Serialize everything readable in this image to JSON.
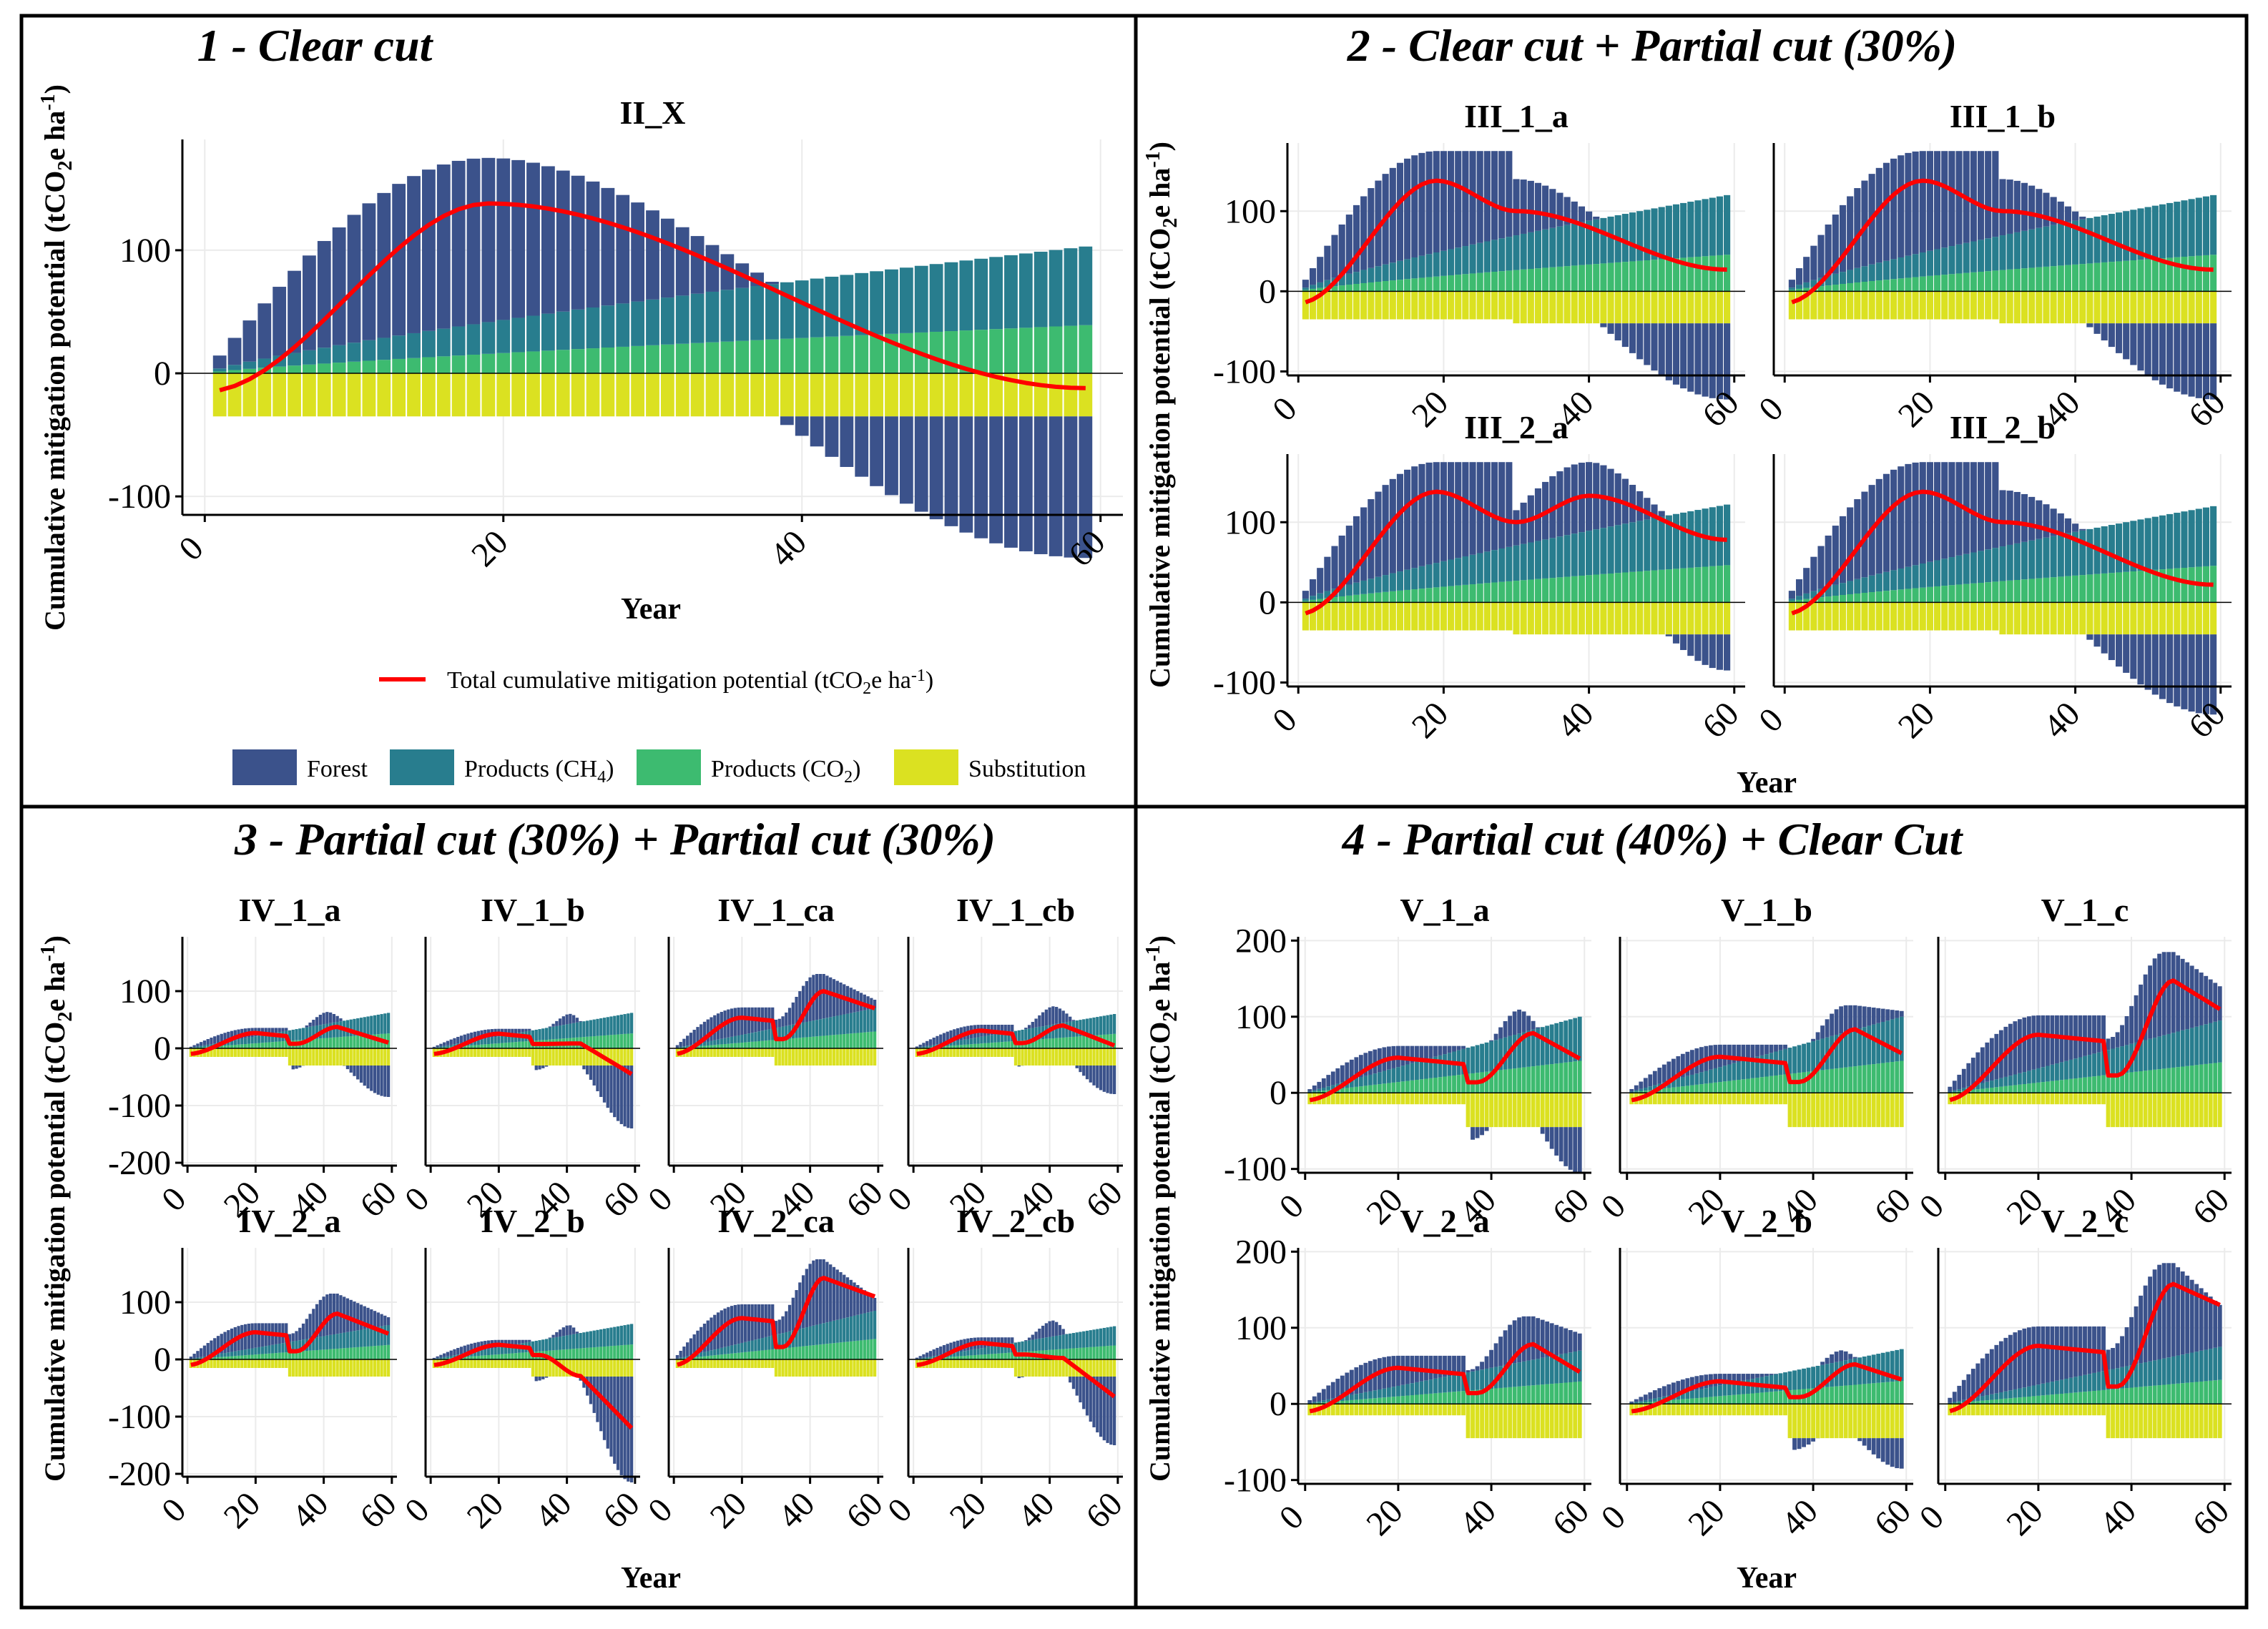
{
  "figure": {
    "y_label": "Cumulative mitigation potential (tCO",
    "y_label_sub": "2",
    "y_label_mid": "e ha",
    "y_label_sup": "-1",
    "y_label_end": ")",
    "x_label": "Year",
    "legend": {
      "line_label_pre": "Total cumulative mitigation potential (tCO",
      "line_label_sub": "2",
      "line_label_mid": "e ha",
      "line_label_sup": "-1",
      "line_label_end": ")",
      "forest": "Forest",
      "ch4_pre": "Products (CH",
      "ch4_sub": "4",
      "ch4_end": ")",
      "co2_pre": "Products (CO",
      "co2_sub": "2",
      "co2_end": ")",
      "substitution": "Substitution"
    },
    "colors": {
      "forest": "#3b528b",
      "ch4": "#287d8e",
      "co2": "#3dbb70",
      "substitution": "#dbe121",
      "total": "#ff0000",
      "frame": "#000000"
    }
  },
  "chart_data": [
    {
      "type": "bar",
      "panel": "1 - Clear cut",
      "x_axis": {
        "label": "Year",
        "ticks": [
          0,
          20,
          40,
          60
        ],
        "range": [
          0,
          60
        ]
      },
      "y_axis": {
        "ticks": [
          -100,
          0,
          100
        ],
        "range": [
          -115,
          190
        ]
      },
      "facets": [
        {
          "title": "II_X",
          "events": [
            {
              "year": 1,
              "kind": "clear",
              "peak": 175,
              "prodfrac": 0.6
            },
            {
              "year": 1,
              "kind": "sub",
              "value": -35
            }
          ],
          "forest_end": -115,
          "total_end": -12,
          "product_end": 103
        }
      ]
    },
    {
      "type": "bar",
      "panel": "2 - Clear cut + Partial cut (30%)",
      "x_axis": {
        "label": "Year",
        "ticks": [
          0,
          20,
          40,
          60
        ],
        "range": [
          0,
          60
        ]
      },
      "y_axis": {
        "ticks": [
          -100,
          0,
          100
        ],
        "range": [
          -105,
          185
        ]
      },
      "facets": [
        {
          "title": "III_1_a",
          "peak": 175,
          "cut2_year": 30,
          "cut2_drop": 35,
          "forest_end": -95,
          "total_end": 27,
          "product_end": 120,
          "sub1": -35,
          "sub2": -40
        },
        {
          "title": "III_1_b",
          "peak": 175,
          "cut2_year": 30,
          "cut2_drop": 35,
          "forest_end": -95,
          "total_end": 27,
          "product_end": 120,
          "sub1": -35,
          "sub2": -40
        },
        {
          "title": "III_2_a",
          "peak": 175,
          "cut2_year": 30,
          "cut2_drop": 40,
          "forest_end": -45,
          "total_end": 78,
          "product_end": 122,
          "sub1": -35,
          "sub2": -40
        },
        {
          "title": "III_2_b",
          "peak": 175,
          "cut2_year": 30,
          "cut2_drop": 35,
          "forest_end": -100,
          "total_end": 22,
          "product_end": 120,
          "sub1": -35,
          "sub2": -40
        }
      ]
    },
    {
      "type": "bar",
      "panel": "3 - Partial cut (30%) + Partial cut (30%)",
      "x_axis": {
        "label": "Year",
        "ticks": [
          0,
          20,
          40,
          60
        ],
        "range": [
          0,
          60
        ]
      },
      "y_axis": {
        "ticks": [
          -200,
          -100,
          0,
          100
        ],
        "range": [
          -205,
          195
        ]
      },
      "facets": [
        {
          "title": "IV_1_a",
          "top_max": 65,
          "total_end": 10,
          "forest_end": -55,
          "product_end": 62
        },
        {
          "title": "IV_1_b",
          "top_max": 62,
          "total_end": -45,
          "forest_end": -110,
          "product_end": 62
        },
        {
          "title": "IV_1_ca",
          "top_max": 130,
          "total_end": 70,
          "forest_end": 0,
          "product_end": 70
        },
        {
          "title": "IV_1_cb",
          "top_max": 75,
          "total_end": 5,
          "forest_end": -50,
          "product_end": 60
        },
        {
          "title": "IV_2_a",
          "top_max": 115,
          "total_end": 45,
          "forest_end": 0,
          "product_end": 60
        },
        {
          "title": "IV_2_b",
          "top_max": 62,
          "total_end": -120,
          "forest_end": -185,
          "product_end": 62
        },
        {
          "title": "IV_2_ca",
          "top_max": 175,
          "total_end": 110,
          "forest_end": 0,
          "product_end": 85
        },
        {
          "title": "IV_2_cb",
          "top_max": 70,
          "total_end": -65,
          "forest_end": -120,
          "product_end": 58
        }
      ]
    },
    {
      "type": "bar",
      "panel": "4 - Partial cut (40%) + Clear Cut",
      "x_axis": {
        "label": "Year",
        "ticks": [
          0,
          20,
          40,
          60
        ],
        "range": [
          0,
          60
        ]
      },
      "y_axis": {
        "ticks": [
          -100,
          0,
          100,
          200
        ],
        "range": [
          -105,
          205
        ]
      },
      "facets": [
        {
          "title": "V_1_a",
          "top_max": 112,
          "total_end": 45,
          "forest_end": -60,
          "product_end": 100
        },
        {
          "title": "V_1_b",
          "top_max": 115,
          "total_end": 52,
          "forest_end": 0,
          "product_end": 100
        },
        {
          "title": "V_1_c",
          "top_max": 185,
          "total_end": 110,
          "forest_end": 0,
          "product_end": 95
        },
        {
          "title": "V_2_a",
          "top_max": 115,
          "total_end": 42,
          "forest_end": 0,
          "product_end": 70
        },
        {
          "title": "V_2_b",
          "top_max": 72,
          "total_end": 32,
          "forest_end": -40,
          "product_end": 72
        },
        {
          "title": "V_2_c",
          "top_max": 185,
          "total_end": 130,
          "forest_end": 0,
          "product_end": 75
        }
      ]
    }
  ]
}
